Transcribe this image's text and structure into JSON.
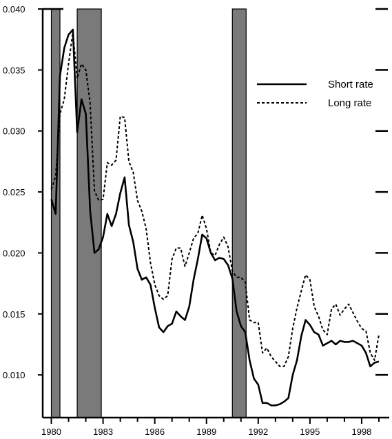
{
  "chart_data": {
    "type": "line",
    "xlabel": "",
    "ylabel": "",
    "xlim": [
      1979.5,
      1999.6
    ],
    "ylim": [
      0.0065,
      0.04
    ],
    "x_ticks": [
      1980,
      1983,
      1986,
      1989,
      1992,
      1995,
      1998
    ],
    "x_tick_labels": [
      "1980",
      "1983",
      "1986",
      "1989",
      "1992",
      "1995",
      "1998"
    ],
    "y_ticks": [
      0.01,
      0.015,
      0.02,
      0.025,
      0.03,
      0.035,
      0.04
    ],
    "y_tick_labels": [
      "0.010",
      "0.015",
      "0.020",
      "0.025",
      "0.030",
      "0.035",
      "0.040"
    ],
    "grid": false,
    "legend_position": "top-right",
    "recession_bands": [
      [
        1980.0,
        1980.5
      ],
      [
        1981.5,
        1982.9
      ],
      [
        1990.5,
        1991.3
      ]
    ],
    "band_color": "#7a7a7a",
    "series": [
      {
        "name": "Short rate",
        "style": "solid",
        "color": "#000000",
        "points": [
          [
            1980.0,
            0.0244
          ],
          [
            1980.25,
            0.0232
          ],
          [
            1980.5,
            0.0345
          ],
          [
            1980.75,
            0.0368
          ],
          [
            1981.0,
            0.0379
          ],
          [
            1981.25,
            0.0383
          ],
          [
            1981.5,
            0.0299
          ],
          [
            1981.75,
            0.0326
          ],
          [
            1982.0,
            0.0314
          ],
          [
            1982.25,
            0.0235
          ],
          [
            1982.5,
            0.02
          ],
          [
            1982.75,
            0.0203
          ],
          [
            1983.0,
            0.0213
          ],
          [
            1983.25,
            0.0232
          ],
          [
            1983.5,
            0.0222
          ],
          [
            1983.75,
            0.0232
          ],
          [
            1984.0,
            0.0249
          ],
          [
            1984.25,
            0.0262
          ],
          [
            1984.5,
            0.0223
          ],
          [
            1984.75,
            0.0209
          ],
          [
            1985.0,
            0.0187
          ],
          [
            1985.25,
            0.0178
          ],
          [
            1985.5,
            0.018
          ],
          [
            1985.75,
            0.0174
          ],
          [
            1986.0,
            0.0155
          ],
          [
            1986.25,
            0.0139
          ],
          [
            1986.5,
            0.0135
          ],
          [
            1986.75,
            0.014
          ],
          [
            1987.0,
            0.0142
          ],
          [
            1987.25,
            0.0152
          ],
          [
            1987.5,
            0.0148
          ],
          [
            1987.75,
            0.0145
          ],
          [
            1988.0,
            0.0156
          ],
          [
            1988.25,
            0.0178
          ],
          [
            1988.5,
            0.0195
          ],
          [
            1988.75,
            0.0215
          ],
          [
            1989.0,
            0.0212
          ],
          [
            1989.25,
            0.02
          ],
          [
            1989.5,
            0.0194
          ],
          [
            1989.75,
            0.0196
          ],
          [
            1990.0,
            0.0195
          ],
          [
            1990.25,
            0.019
          ],
          [
            1990.5,
            0.0179
          ],
          [
            1990.75,
            0.0152
          ],
          [
            1991.0,
            0.014
          ],
          [
            1991.25,
            0.0135
          ],
          [
            1991.5,
            0.0112
          ],
          [
            1991.75,
            0.0097
          ],
          [
            1992.0,
            0.0092
          ],
          [
            1992.25,
            0.0077
          ],
          [
            1992.5,
            0.0077
          ],
          [
            1992.75,
            0.0075
          ],
          [
            1993.0,
            0.0075
          ],
          [
            1993.25,
            0.0076
          ],
          [
            1993.5,
            0.0078
          ],
          [
            1993.75,
            0.0081
          ],
          [
            1994.0,
            0.01
          ],
          [
            1994.25,
            0.0112
          ],
          [
            1994.5,
            0.0132
          ],
          [
            1994.75,
            0.0145
          ],
          [
            1995.0,
            0.0141
          ],
          [
            1995.25,
            0.0135
          ],
          [
            1995.5,
            0.0133
          ],
          [
            1995.75,
            0.0124
          ],
          [
            1996.0,
            0.0126
          ],
          [
            1996.25,
            0.0128
          ],
          [
            1996.5,
            0.0125
          ],
          [
            1996.75,
            0.0128
          ],
          [
            1997.0,
            0.0127
          ],
          [
            1997.25,
            0.0127
          ],
          [
            1997.5,
            0.0128
          ],
          [
            1997.75,
            0.0126
          ],
          [
            1998.0,
            0.0124
          ],
          [
            1998.25,
            0.0118
          ],
          [
            1998.5,
            0.0107
          ],
          [
            1998.75,
            0.011
          ],
          [
            1999.0,
            0.0111
          ]
        ]
      },
      {
        "name": "Long rate",
        "style": "dashed",
        "color": "#000000",
        "points": [
          [
            1980.0,
            0.0252
          ],
          [
            1980.25,
            0.0263
          ],
          [
            1980.5,
            0.0314
          ],
          [
            1980.75,
            0.0326
          ],
          [
            1981.0,
            0.0355
          ],
          [
            1981.25,
            0.0381
          ],
          [
            1981.5,
            0.0343
          ],
          [
            1981.75,
            0.0355
          ],
          [
            1982.0,
            0.035
          ],
          [
            1982.25,
            0.0323
          ],
          [
            1982.5,
            0.0251
          ],
          [
            1982.75,
            0.0243
          ],
          [
            1983.0,
            0.0244
          ],
          [
            1983.25,
            0.0274
          ],
          [
            1983.5,
            0.0272
          ],
          [
            1983.75,
            0.0276
          ],
          [
            1984.0,
            0.0312
          ],
          [
            1984.25,
            0.0311
          ],
          [
            1984.5,
            0.0275
          ],
          [
            1984.75,
            0.0266
          ],
          [
            1985.0,
            0.0243
          ],
          [
            1985.25,
            0.0234
          ],
          [
            1985.5,
            0.022
          ],
          [
            1985.75,
            0.0192
          ],
          [
            1986.0,
            0.0174
          ],
          [
            1986.25,
            0.0165
          ],
          [
            1986.5,
            0.0162
          ],
          [
            1986.75,
            0.0165
          ],
          [
            1987.0,
            0.0195
          ],
          [
            1987.25,
            0.0204
          ],
          [
            1987.5,
            0.0204
          ],
          [
            1987.75,
            0.0189
          ],
          [
            1988.0,
            0.02
          ],
          [
            1988.25,
            0.0212
          ],
          [
            1988.5,
            0.0216
          ],
          [
            1988.75,
            0.0231
          ],
          [
            1989.0,
            0.022
          ],
          [
            1989.25,
            0.02
          ],
          [
            1989.5,
            0.0198
          ],
          [
            1989.75,
            0.0207
          ],
          [
            1990.0,
            0.0213
          ],
          [
            1990.25,
            0.0205
          ],
          [
            1990.5,
            0.0185
          ],
          [
            1990.75,
            0.018
          ],
          [
            1991.0,
            0.018
          ],
          [
            1991.25,
            0.0176
          ],
          [
            1991.5,
            0.0145
          ],
          [
            1991.75,
            0.0143
          ],
          [
            1992.0,
            0.0143
          ],
          [
            1992.25,
            0.0118
          ],
          [
            1992.5,
            0.0122
          ],
          [
            1992.75,
            0.0115
          ],
          [
            1993.0,
            0.0111
          ],
          [
            1993.25,
            0.0107
          ],
          [
            1993.5,
            0.0107
          ],
          [
            1993.75,
            0.0115
          ],
          [
            1994.0,
            0.0138
          ],
          [
            1994.25,
            0.0155
          ],
          [
            1994.5,
            0.0169
          ],
          [
            1994.75,
            0.0182
          ],
          [
            1995.0,
            0.0178
          ],
          [
            1995.25,
            0.0156
          ],
          [
            1995.5,
            0.0148
          ],
          [
            1995.75,
            0.0137
          ],
          [
            1996.0,
            0.0133
          ],
          [
            1996.25,
            0.0154
          ],
          [
            1996.5,
            0.0158
          ],
          [
            1996.75,
            0.0149
          ],
          [
            1997.0,
            0.0154
          ],
          [
            1997.25,
            0.0158
          ],
          [
            1997.5,
            0.0151
          ],
          [
            1997.75,
            0.0144
          ],
          [
            1998.0,
            0.0138
          ],
          [
            1998.25,
            0.0136
          ],
          [
            1998.5,
            0.0118
          ],
          [
            1998.75,
            0.0112
          ],
          [
            1999.0,
            0.0133
          ]
        ]
      }
    ]
  }
}
